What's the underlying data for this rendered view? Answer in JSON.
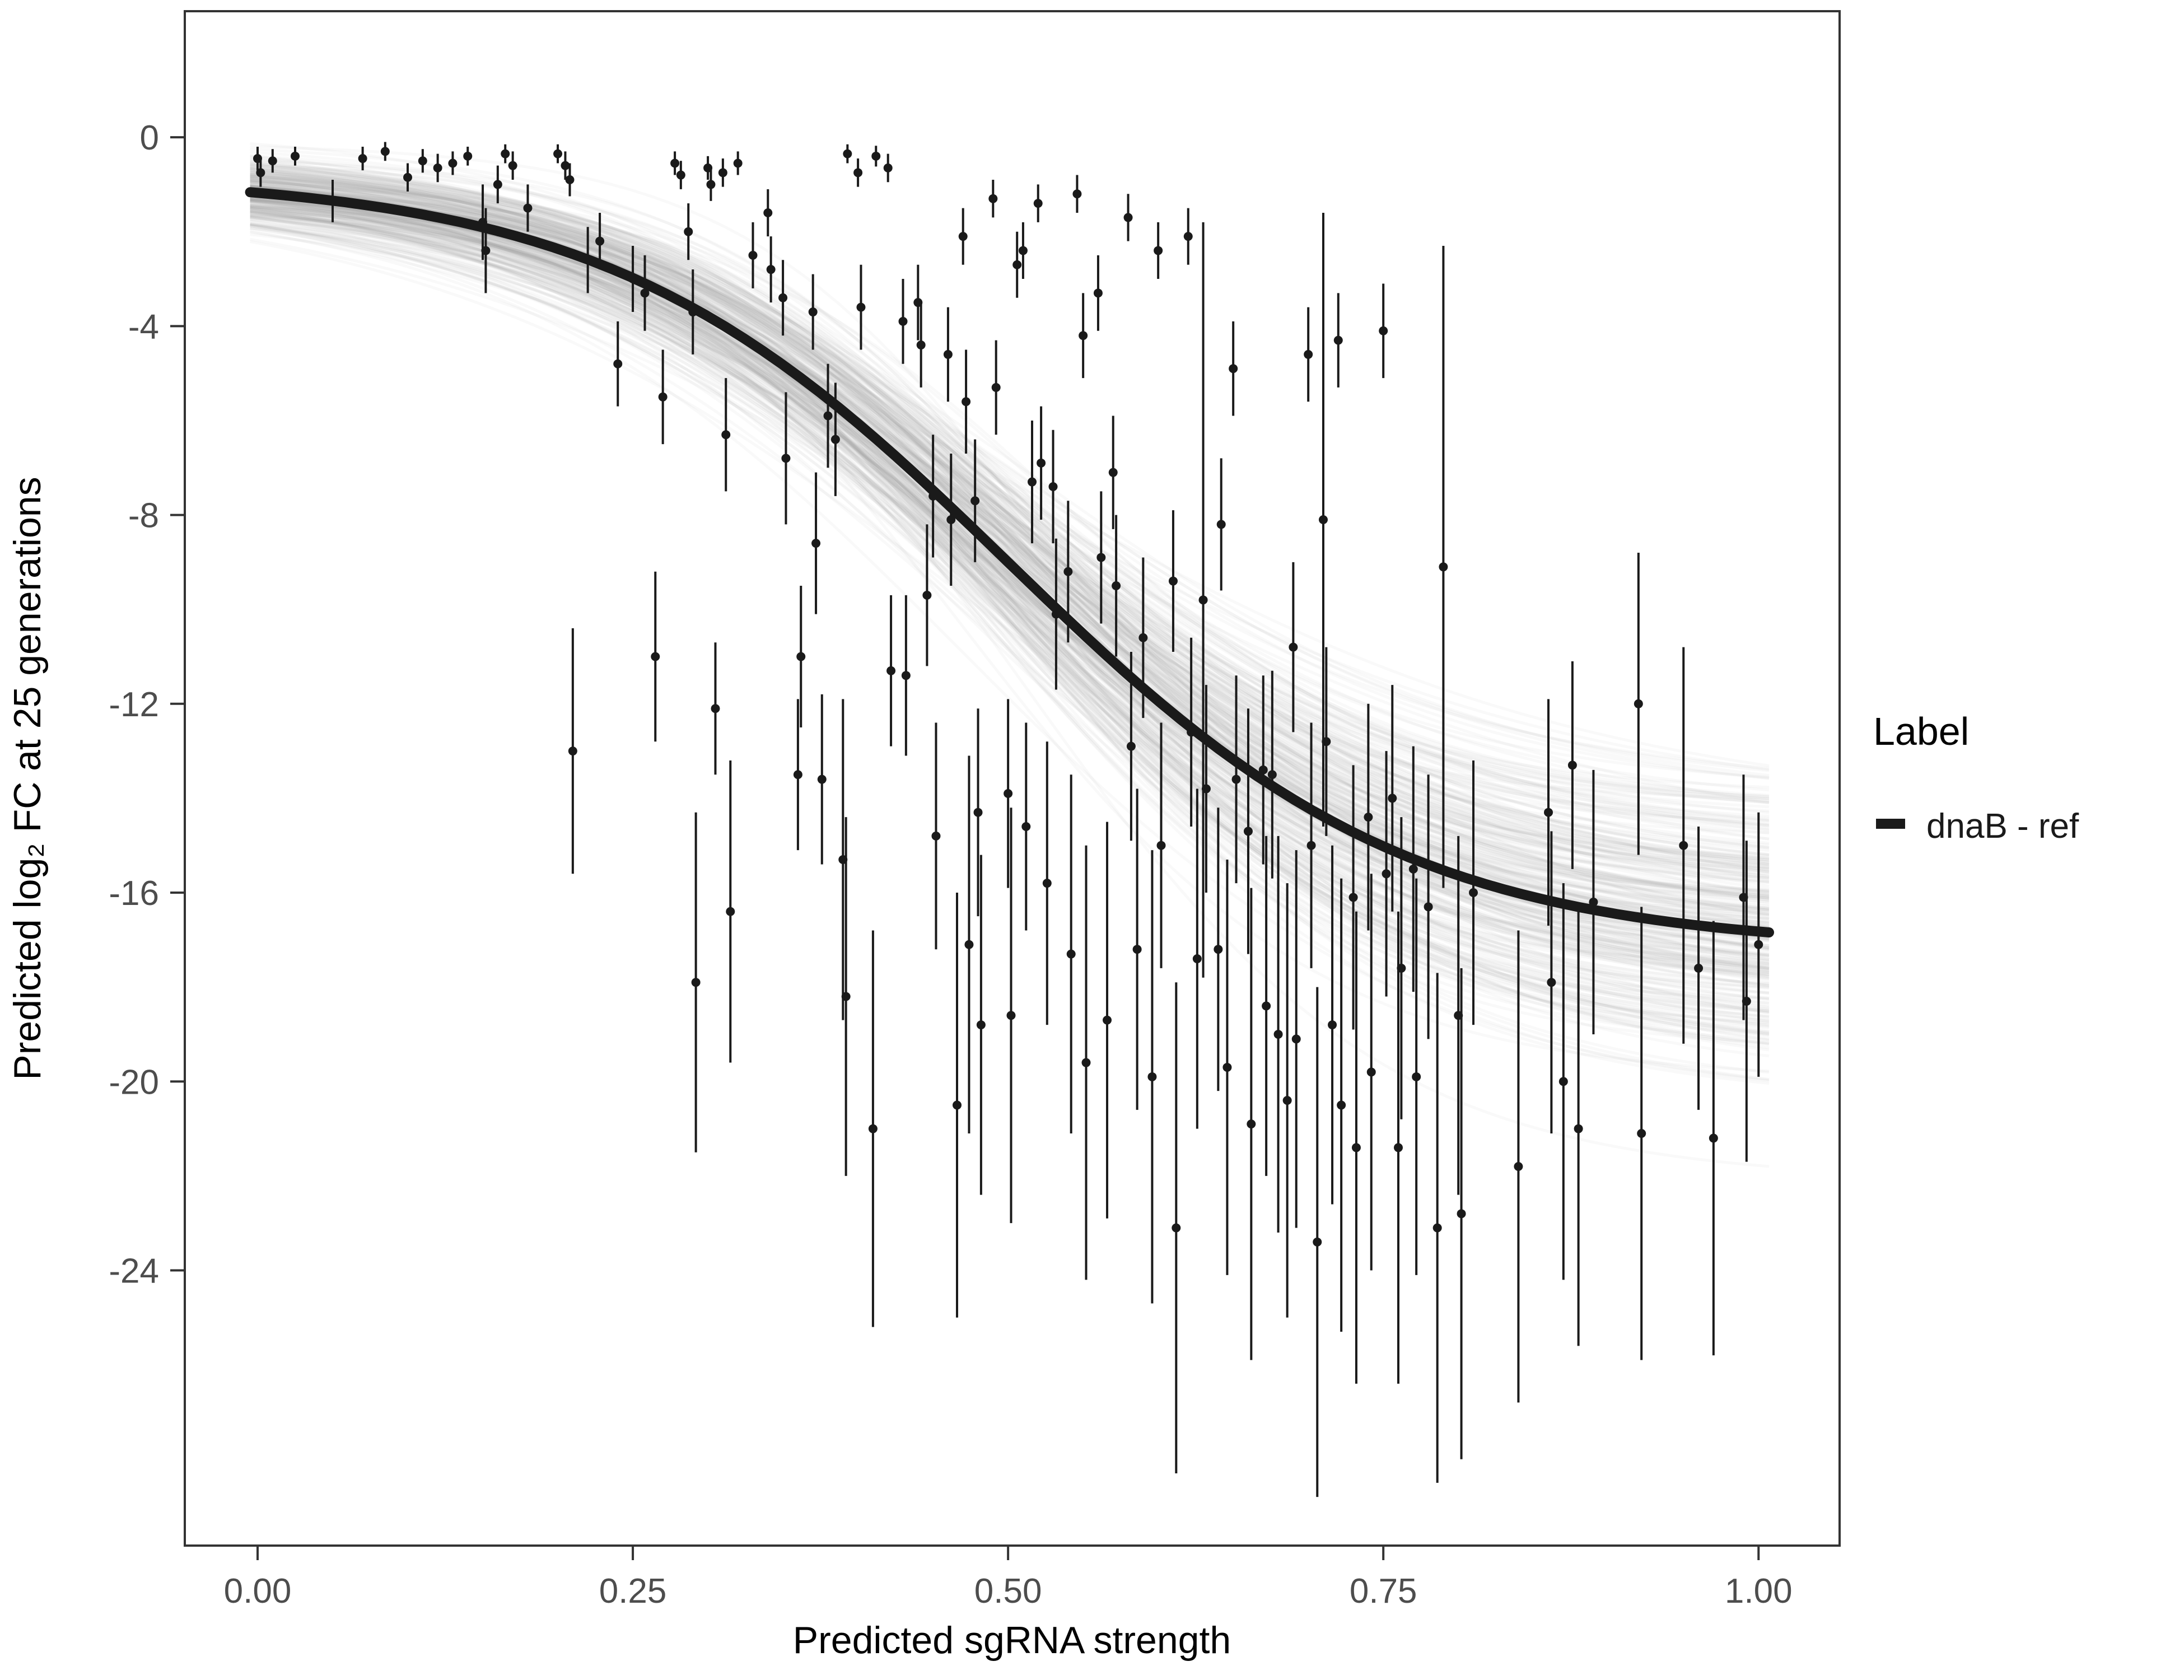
{
  "chart_data": {
    "type": "scatter",
    "title": "",
    "xlabel": "Predicted sgRNA strength",
    "ylabel": "Predicted  log₂ FC at 25 generations",
    "xlim": [
      -0.0485,
      1.054
    ],
    "ylim": [
      -29.83,
      2.67
    ],
    "grid": "off",
    "x_ticks": [
      0.0,
      0.25,
      0.5,
      0.75,
      1.0
    ],
    "x_tick_labels": [
      "0.00",
      "0.25",
      "0.50",
      "0.75",
      "1.00"
    ],
    "y_ticks": [
      0,
      -4,
      -8,
      -12,
      -16,
      -20,
      -24
    ],
    "y_tick_labels": [
      "0",
      "-4",
      "-8",
      "-12",
      "-16",
      "-20",
      "-24"
    ],
    "legend": {
      "position": "right",
      "title": "Label",
      "entries": [
        {
          "label": "dnaB - ref",
          "color": "#1a1a1a"
        }
      ]
    },
    "fit_curve": {
      "type": "sigmoid",
      "y_top": -0.8,
      "y_bottom": -17.2,
      "x_mid": 0.5,
      "k": 7.5,
      "color": "#1a1a1a"
    },
    "uncertainty_band": {
      "n_curves": 300,
      "seed": 42,
      "jitter": {
        "y_top": 0.35,
        "y_bottom": 1.5,
        "x_mid": 0.018,
        "k": 0.9
      },
      "color": "#999999",
      "opacity": 0.06
    },
    "points": {
      "color": "#1a1a1a",
      "format": [
        "x",
        "y",
        "error_half_range"
      ],
      "data": [
        [
          0.0,
          -0.45,
          0.25
        ],
        [
          0.002,
          -0.75,
          0.3
        ],
        [
          0.01,
          -0.5,
          0.25
        ],
        [
          0.025,
          -0.4,
          0.2
        ],
        [
          0.05,
          -1.35,
          0.45
        ],
        [
          0.07,
          -0.45,
          0.25
        ],
        [
          0.085,
          -0.3,
          0.2
        ],
        [
          0.1,
          -0.85,
          0.3
        ],
        [
          0.11,
          -0.5,
          0.25
        ],
        [
          0.12,
          -0.65,
          0.3
        ],
        [
          0.13,
          -0.55,
          0.25
        ],
        [
          0.14,
          -0.4,
          0.2
        ],
        [
          0.15,
          -1.8,
          0.8
        ],
        [
          0.152,
          -2.4,
          0.9
        ],
        [
          0.16,
          -1.0,
          0.4
        ],
        [
          0.165,
          -0.35,
          0.2
        ],
        [
          0.17,
          -0.6,
          0.3
        ],
        [
          0.18,
          -1.5,
          0.5
        ],
        [
          0.2,
          -0.35,
          0.2
        ],
        [
          0.205,
          -0.6,
          0.3
        ],
        [
          0.208,
          -0.9,
          0.35
        ],
        [
          0.21,
          -13.0,
          2.6
        ],
        [
          0.22,
          -2.6,
          0.7
        ],
        [
          0.228,
          -2.2,
          0.6
        ],
        [
          0.24,
          -4.8,
          0.9
        ],
        [
          0.25,
          -3.0,
          0.7
        ],
        [
          0.258,
          -3.3,
          0.8
        ],
        [
          0.265,
          -11.0,
          1.8
        ],
        [
          0.27,
          -5.5,
          1.0
        ],
        [
          0.278,
          -0.55,
          0.25
        ],
        [
          0.282,
          -0.8,
          0.3
        ],
        [
          0.287,
          -2.0,
          0.6
        ],
        [
          0.29,
          -3.7,
          0.9
        ],
        [
          0.292,
          -17.9,
          3.6
        ],
        [
          0.3,
          -0.65,
          0.25
        ],
        [
          0.302,
          -1.0,
          0.35
        ],
        [
          0.305,
          -12.1,
          1.4
        ],
        [
          0.31,
          -0.75,
          0.3
        ],
        [
          0.312,
          -6.3,
          1.2
        ],
        [
          0.315,
          -16.4,
          3.2
        ],
        [
          0.32,
          -0.55,
          0.25
        ],
        [
          0.33,
          -2.5,
          0.7
        ],
        [
          0.34,
          -1.6,
          0.5
        ],
        [
          0.342,
          -2.8,
          0.7
        ],
        [
          0.35,
          -3.4,
          0.8
        ],
        [
          0.352,
          -6.8,
          1.4
        ],
        [
          0.36,
          -13.5,
          1.6
        ],
        [
          0.362,
          -11.0,
          1.5
        ],
        [
          0.37,
          -3.7,
          0.8
        ],
        [
          0.372,
          -8.6,
          1.5
        ],
        [
          0.376,
          -13.6,
          1.8
        ],
        [
          0.38,
          -5.9,
          1.1
        ],
        [
          0.385,
          -6.4,
          1.2
        ],
        [
          0.39,
          -15.3,
          3.4
        ],
        [
          0.392,
          -18.2,
          3.8
        ],
        [
          0.393,
          -0.35,
          0.2
        ],
        [
          0.4,
          -0.75,
          0.3
        ],
        [
          0.402,
          -3.6,
          0.9
        ],
        [
          0.41,
          -21.0,
          4.2
        ],
        [
          0.412,
          -0.4,
          0.22
        ],
        [
          0.42,
          -0.65,
          0.3
        ],
        [
          0.422,
          -11.3,
          1.6
        ],
        [
          0.43,
          -3.9,
          0.9
        ],
        [
          0.432,
          -11.4,
          1.7
        ],
        [
          0.44,
          -3.5,
          0.8
        ],
        [
          0.442,
          -4.4,
          0.9
        ],
        [
          0.446,
          -9.7,
          1.5
        ],
        [
          0.45,
          -7.6,
          1.3
        ],
        [
          0.452,
          -14.8,
          2.4
        ],
        [
          0.46,
          -4.6,
          1.0
        ],
        [
          0.462,
          -8.1,
          1.4
        ],
        [
          0.466,
          -20.5,
          4.5
        ],
        [
          0.47,
          -2.1,
          0.6
        ],
        [
          0.472,
          -5.6,
          1.1
        ],
        [
          0.474,
          -17.1,
          4.0
        ],
        [
          0.478,
          -7.7,
          1.3
        ],
        [
          0.48,
          -14.3,
          2.2
        ],
        [
          0.482,
          -18.8,
          3.6
        ],
        [
          0.49,
          -1.3,
          0.4
        ],
        [
          0.492,
          -5.3,
          1.0
        ],
        [
          0.5,
          -13.9,
          2.0
        ],
        [
          0.502,
          -18.6,
          4.4
        ],
        [
          0.506,
          -2.7,
          0.7
        ],
        [
          0.51,
          -2.4,
          0.6
        ],
        [
          0.512,
          -14.6,
          2.2
        ],
        [
          0.516,
          -7.3,
          1.3
        ],
        [
          0.52,
          -1.4,
          0.4
        ],
        [
          0.522,
          -6.9,
          1.2
        ],
        [
          0.526,
          -15.8,
          3.0
        ],
        [
          0.53,
          -7.4,
          1.2
        ],
        [
          0.532,
          -10.1,
          1.6
        ],
        [
          0.54,
          -9.2,
          1.5
        ],
        [
          0.542,
          -17.3,
          3.8
        ],
        [
          0.546,
          -1.2,
          0.4
        ],
        [
          0.55,
          -4.2,
          0.9
        ],
        [
          0.552,
          -19.6,
          4.6
        ],
        [
          0.56,
          -3.3,
          0.8
        ],
        [
          0.562,
          -8.9,
          1.4
        ],
        [
          0.566,
          -18.7,
          4.2
        ],
        [
          0.57,
          -7.1,
          1.2
        ],
        [
          0.572,
          -9.5,
          1.5
        ],
        [
          0.58,
          -1.7,
          0.5
        ],
        [
          0.582,
          -12.9,
          2.0
        ],
        [
          0.586,
          -17.2,
          3.4
        ],
        [
          0.59,
          -10.6,
          1.7
        ],
        [
          0.596,
          -19.9,
          4.8
        ],
        [
          0.6,
          -2.4,
          0.6
        ],
        [
          0.602,
          -15.0,
          2.6
        ],
        [
          0.61,
          -9.4,
          1.5
        ],
        [
          0.612,
          -23.1,
          5.2
        ],
        [
          0.62,
          -2.1,
          0.6
        ],
        [
          0.622,
          -12.6,
          2.0
        ],
        [
          0.626,
          -17.4,
          3.6
        ],
        [
          0.63,
          -9.8,
          8.0
        ],
        [
          0.632,
          -13.8,
          2.2
        ],
        [
          0.64,
          -17.2,
          3.0
        ],
        [
          0.642,
          -8.2,
          1.4
        ],
        [
          0.646,
          -19.7,
          4.4
        ],
        [
          0.65,
          -4.9,
          1.0
        ],
        [
          0.652,
          -13.6,
          2.2
        ],
        [
          0.66,
          -14.7,
          2.6
        ],
        [
          0.662,
          -20.9,
          5.0
        ],
        [
          0.67,
          -13.4,
          2.0
        ],
        [
          0.672,
          -18.4,
          3.6
        ],
        [
          0.676,
          -13.5,
          2.2
        ],
        [
          0.68,
          -19.0,
          4.2
        ],
        [
          0.686,
          -20.4,
          4.6
        ],
        [
          0.69,
          -10.8,
          1.8
        ],
        [
          0.692,
          -19.1,
          4.0
        ],
        [
          0.7,
          -4.6,
          1.0
        ],
        [
          0.702,
          -15.0,
          2.6
        ],
        [
          0.706,
          -23.4,
          5.4
        ],
        [
          0.71,
          -8.1,
          6.5
        ],
        [
          0.712,
          -12.8,
          2.0
        ],
        [
          0.716,
          -18.8,
          3.8
        ],
        [
          0.72,
          -4.3,
          1.0
        ],
        [
          0.722,
          -20.5,
          4.8
        ],
        [
          0.73,
          -16.1,
          2.8
        ],
        [
          0.732,
          -21.4,
          5.0
        ],
        [
          0.74,
          -14.4,
          2.4
        ],
        [
          0.742,
          -19.8,
          4.2
        ],
        [
          0.75,
          -4.1,
          1.0
        ],
        [
          0.752,
          -15.6,
          2.6
        ],
        [
          0.756,
          -14.0,
          2.4
        ],
        [
          0.76,
          -21.4,
          5.0
        ],
        [
          0.762,
          -17.6,
          3.2
        ],
        [
          0.77,
          -15.5,
          2.6
        ],
        [
          0.772,
          -19.9,
          4.2
        ],
        [
          0.78,
          -16.3,
          2.8
        ],
        [
          0.786,
          -23.1,
          5.4
        ],
        [
          0.79,
          -9.1,
          6.8
        ],
        [
          0.8,
          -18.6,
          3.8
        ],
        [
          0.802,
          -22.8,
          5.2
        ],
        [
          0.81,
          -16.0,
          2.8
        ],
        [
          0.84,
          -21.8,
          5.0
        ],
        [
          0.86,
          -14.3,
          2.4
        ],
        [
          0.862,
          -17.9,
          3.2
        ],
        [
          0.87,
          -20.0,
          4.2
        ],
        [
          0.876,
          -13.3,
          2.2
        ],
        [
          0.88,
          -21.0,
          4.6
        ],
        [
          0.89,
          -16.2,
          2.8
        ],
        [
          0.92,
          -12.0,
          3.2
        ],
        [
          0.922,
          -21.1,
          4.8
        ],
        [
          0.95,
          -15.0,
          4.2
        ],
        [
          0.96,
          -17.6,
          3.0
        ],
        [
          0.97,
          -21.2,
          4.6
        ],
        [
          0.99,
          -16.1,
          2.6
        ],
        [
          0.992,
          -18.3,
          3.4
        ],
        [
          1.0,
          -17.1,
          2.8
        ]
      ]
    }
  }
}
